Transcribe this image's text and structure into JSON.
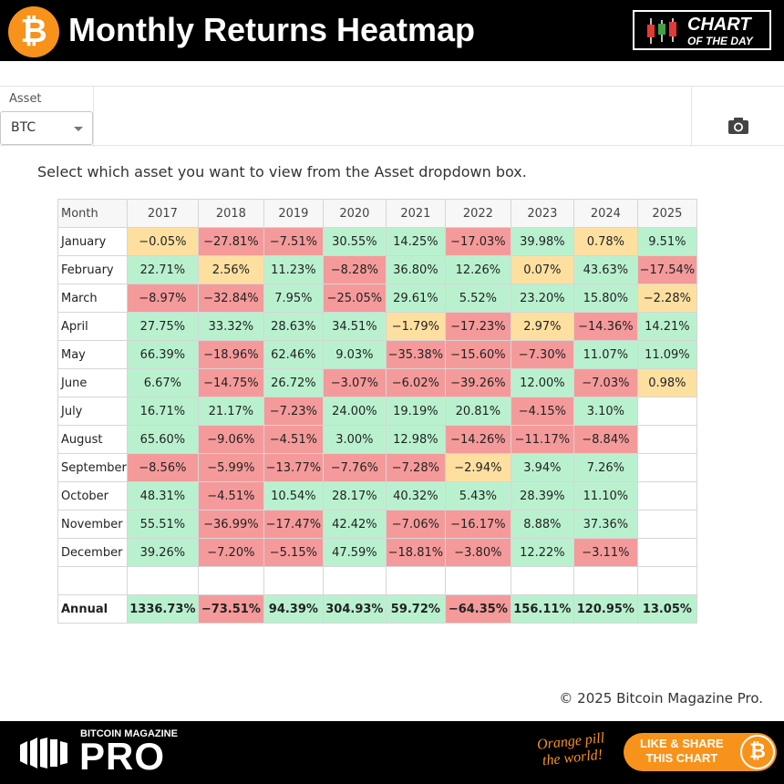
{
  "header": {
    "logo_glyph": "₿",
    "title": "Monthly Returns Heatmap",
    "badge_line1": "CHART",
    "badge_line2": "OF THE DAY"
  },
  "toolbar": {
    "asset_label": "Asset",
    "asset_value": "BTC",
    "camera_icon": "camera-icon"
  },
  "instruction": "Select which asset you want to view from the Asset dropdown box.",
  "colors": {
    "green": "#b9f1cf",
    "red": "#f59a9a",
    "yellow": "#fde0a0",
    "accent": "#f7931a"
  },
  "table": {
    "month_header": "Month",
    "years": [
      "2017",
      "2018",
      "2019",
      "2020",
      "2021",
      "2022",
      "2023",
      "2024",
      "2025"
    ],
    "rows": [
      {
        "month": "January",
        "cells": [
          [
            "−0.05%",
            "y"
          ],
          [
            "−27.81%",
            "r"
          ],
          [
            "−7.51%",
            "r"
          ],
          [
            "30.55%",
            "g"
          ],
          [
            "14.25%",
            "g"
          ],
          [
            "−17.03%",
            "r"
          ],
          [
            "39.98%",
            "g"
          ],
          [
            "0.78%",
            "y"
          ],
          [
            "9.51%",
            "g"
          ]
        ]
      },
      {
        "month": "February",
        "cells": [
          [
            "22.71%",
            "g"
          ],
          [
            "2.56%",
            "y"
          ],
          [
            "11.23%",
            "g"
          ],
          [
            "−8.28%",
            "r"
          ],
          [
            "36.80%",
            "g"
          ],
          [
            "12.26%",
            "g"
          ],
          [
            "0.07%",
            "y"
          ],
          [
            "43.63%",
            "g"
          ],
          [
            "−17.54%",
            "r"
          ]
        ]
      },
      {
        "month": "March",
        "cells": [
          [
            "−8.97%",
            "r"
          ],
          [
            "−32.84%",
            "r"
          ],
          [
            "7.95%",
            "g"
          ],
          [
            "−25.05%",
            "r"
          ],
          [
            "29.61%",
            "g"
          ],
          [
            "5.52%",
            "g"
          ],
          [
            "23.20%",
            "g"
          ],
          [
            "15.80%",
            "g"
          ],
          [
            "−2.28%",
            "y"
          ]
        ]
      },
      {
        "month": "April",
        "cells": [
          [
            "27.75%",
            "g"
          ],
          [
            "33.32%",
            "g"
          ],
          [
            "28.63%",
            "g"
          ],
          [
            "34.51%",
            "g"
          ],
          [
            "−1.79%",
            "y"
          ],
          [
            "−17.23%",
            "r"
          ],
          [
            "2.97%",
            "y"
          ],
          [
            "−14.36%",
            "r"
          ],
          [
            "14.21%",
            "g"
          ]
        ]
      },
      {
        "month": "May",
        "cells": [
          [
            "66.39%",
            "g"
          ],
          [
            "−18.96%",
            "r"
          ],
          [
            "62.46%",
            "g"
          ],
          [
            "9.03%",
            "g"
          ],
          [
            "−35.38%",
            "r"
          ],
          [
            "−15.60%",
            "r"
          ],
          [
            "−7.30%",
            "r"
          ],
          [
            "11.07%",
            "g"
          ],
          [
            "11.09%",
            "g"
          ]
        ]
      },
      {
        "month": "June",
        "cells": [
          [
            "6.67%",
            "g"
          ],
          [
            "−14.75%",
            "r"
          ],
          [
            "26.72%",
            "g"
          ],
          [
            "−3.07%",
            "r"
          ],
          [
            "−6.02%",
            "r"
          ],
          [
            "−39.26%",
            "r"
          ],
          [
            "12.00%",
            "g"
          ],
          [
            "−7.03%",
            "r"
          ],
          [
            "0.98%",
            "y"
          ]
        ]
      },
      {
        "month": "July",
        "cells": [
          [
            "16.71%",
            "g"
          ],
          [
            "21.17%",
            "g"
          ],
          [
            "−7.23%",
            "r"
          ],
          [
            "24.00%",
            "g"
          ],
          [
            "19.19%",
            "g"
          ],
          [
            "20.81%",
            "g"
          ],
          [
            "−4.15%",
            "r"
          ],
          [
            "3.10%",
            "g"
          ],
          [
            "",
            "e"
          ]
        ]
      },
      {
        "month": "August",
        "cells": [
          [
            "65.60%",
            "g"
          ],
          [
            "−9.06%",
            "r"
          ],
          [
            "−4.51%",
            "r"
          ],
          [
            "3.00%",
            "g"
          ],
          [
            "12.98%",
            "g"
          ],
          [
            "−14.26%",
            "r"
          ],
          [
            "−11.17%",
            "r"
          ],
          [
            "−8.84%",
            "r"
          ],
          [
            "",
            "e"
          ]
        ]
      },
      {
        "month": "September",
        "cells": [
          [
            "−8.56%",
            "r"
          ],
          [
            "−5.99%",
            "r"
          ],
          [
            "−13.77%",
            "r"
          ],
          [
            "−7.76%",
            "r"
          ],
          [
            "−7.28%",
            "r"
          ],
          [
            "−2.94%",
            "y"
          ],
          [
            "3.94%",
            "g"
          ],
          [
            "7.26%",
            "g"
          ],
          [
            "",
            "e"
          ]
        ]
      },
      {
        "month": "October",
        "cells": [
          [
            "48.31%",
            "g"
          ],
          [
            "−4.51%",
            "r"
          ],
          [
            "10.54%",
            "g"
          ],
          [
            "28.17%",
            "g"
          ],
          [
            "40.32%",
            "g"
          ],
          [
            "5.43%",
            "g"
          ],
          [
            "28.39%",
            "g"
          ],
          [
            "11.10%",
            "g"
          ],
          [
            "",
            "e"
          ]
        ]
      },
      {
        "month": "November",
        "cells": [
          [
            "55.51%",
            "g"
          ],
          [
            "−36.99%",
            "r"
          ],
          [
            "−17.47%",
            "r"
          ],
          [
            "42.42%",
            "g"
          ],
          [
            "−7.06%",
            "r"
          ],
          [
            "−16.17%",
            "r"
          ],
          [
            "8.88%",
            "g"
          ],
          [
            "37.36%",
            "g"
          ],
          [
            "",
            "e"
          ]
        ]
      },
      {
        "month": "December",
        "cells": [
          [
            "39.26%",
            "g"
          ],
          [
            "−7.20%",
            "r"
          ],
          [
            "−5.15%",
            "r"
          ],
          [
            "47.59%",
            "g"
          ],
          [
            "−18.81%",
            "r"
          ],
          [
            "−3.80%",
            "r"
          ],
          [
            "12.22%",
            "g"
          ],
          [
            "−3.11%",
            "r"
          ],
          [
            "",
            "e"
          ]
        ]
      }
    ],
    "annual": {
      "label": "Annual",
      "cells": [
        [
          "1336.73%",
          "g"
        ],
        [
          "−73.51%",
          "r"
        ],
        [
          "94.39%",
          "g"
        ],
        [
          "304.93%",
          "g"
        ],
        [
          "59.72%",
          "g"
        ],
        [
          "−64.35%",
          "r"
        ],
        [
          "156.11%",
          "g"
        ],
        [
          "120.95%",
          "g"
        ],
        [
          "13.05%",
          "g"
        ]
      ]
    }
  },
  "copyright": "© 2025 Bitcoin Magazine Pro.",
  "footer": {
    "brand_small": "BITCOIN MAGAZINE",
    "brand_big": "PRO",
    "slogan_line1": "Orange pill",
    "slogan_line2": "the world!",
    "share_line1": "LIKE & SHARE",
    "share_line2": "THIS CHART",
    "share_glyph": "₿"
  }
}
